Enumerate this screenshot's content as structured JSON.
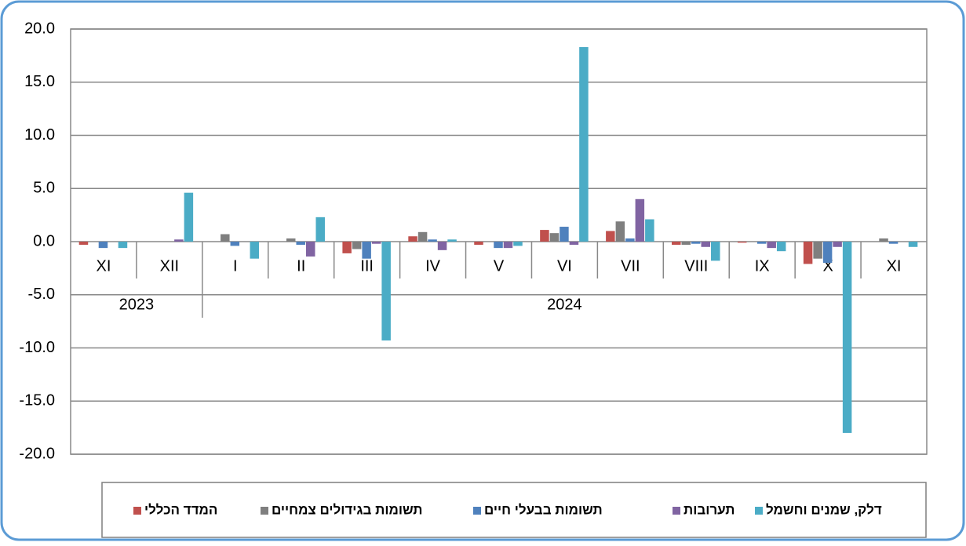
{
  "chart_data": {
    "type": "bar",
    "categories": [
      "XI",
      "XII",
      "I",
      "II",
      "III",
      "IV",
      "V",
      "VI",
      "VII",
      "VIII",
      "IX",
      "X",
      "XI"
    ],
    "year_groups": [
      {
        "label": "2023",
        "count": 2
      },
      {
        "label": "2024",
        "count": 11
      }
    ],
    "series": [
      {
        "name": "המדד הכללי",
        "color": "#c0504d",
        "values": [
          -0.3,
          0,
          0,
          0,
          -1.1,
          0.5,
          -0.3,
          1.1,
          1.0,
          -0.3,
          -0.1,
          -2.1,
          0
        ]
      },
      {
        "name": "תשומות בגידולים צמחיים",
        "color": "#7f7f7f",
        "values": [
          0,
          0,
          0.7,
          0.3,
          -0.7,
          0.9,
          0,
          0.8,
          1.9,
          -0.3,
          0,
          -1.6,
          0.3
        ]
      },
      {
        "name": "תשומות בבעלי חיים",
        "color": "#4f81bd",
        "values": [
          -0.6,
          0,
          -0.4,
          -0.3,
          -1.6,
          0.2,
          -0.6,
          1.4,
          0.3,
          -0.2,
          -0.2,
          -2.0,
          -0.2
        ]
      },
      {
        "name": "תערובות",
        "color": "#8064a2",
        "values": [
          0,
          0.2,
          0,
          -1.4,
          -0.2,
          -0.8,
          -0.6,
          -0.3,
          4.0,
          -0.5,
          -0.6,
          -0.5,
          0
        ]
      },
      {
        "name": "דלק, שמנים וחשמל",
        "color": "#4bacc6",
        "values": [
          -0.6,
          4.6,
          -1.6,
          2.3,
          -9.3,
          0.2,
          -0.4,
          18.3,
          2.1,
          -1.8,
          -0.9,
          -18.0,
          -0.5
        ]
      }
    ],
    "ylim": [
      -20,
      20
    ],
    "yticks": [
      {
        "value": -20,
        "label": "-20.0"
      },
      {
        "value": -15,
        "label": "-15.0"
      },
      {
        "value": -10,
        "label": "-10.0"
      },
      {
        "value": -5,
        "label": "-5.0"
      },
      {
        "value": 0,
        "label": "0.0"
      },
      {
        "value": 5,
        "label": "5.0"
      },
      {
        "value": 10,
        "label": "10.0"
      },
      {
        "value": 15,
        "label": "15.0"
      },
      {
        "value": 20,
        "label": "20.0"
      }
    ],
    "grid": true
  }
}
